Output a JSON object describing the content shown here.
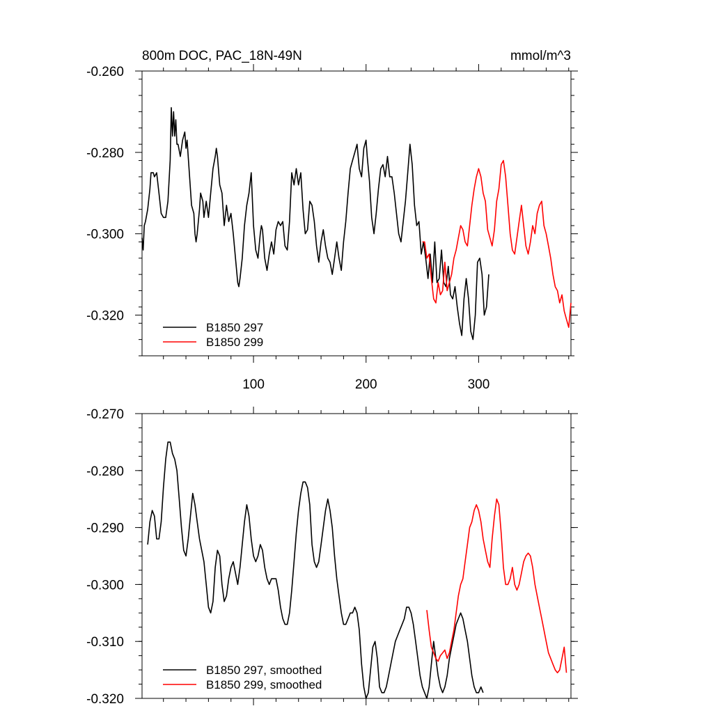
{
  "chart_data": [
    {
      "type": "line",
      "title": "800m DOC, PAC_18N-49N",
      "units": "mmol/m^3",
      "xlabel": "",
      "ylabel": "",
      "xlim": [
        1,
        382
      ],
      "ylim": [
        -0.33,
        -0.26
      ],
      "xticks": [
        100,
        200,
        300
      ],
      "xtick_labels": [
        "100",
        "200",
        "300"
      ],
      "yticks": [
        -0.32,
        -0.3,
        -0.28,
        -0.26
      ],
      "ytick_labels": [
        "-0.320",
        "-0.300",
        "-0.280",
        "-0.260"
      ],
      "grid": false,
      "legend_position": "bottom-left",
      "colors": {
        "B1850 297": "#000000",
        "B1850 299": "#ff0000"
      },
      "series": [
        {
          "name": "B1850 297",
          "color": "#000000",
          "x": [
            1,
            2,
            3,
            4,
            6,
            8,
            9,
            10,
            11,
            12,
            14,
            16,
            18,
            20,
            22,
            24,
            26,
            27,
            28,
            29,
            30,
            31,
            32,
            33,
            35,
            37,
            39,
            40,
            41,
            43,
            45,
            47,
            48,
            49,
            50,
            52,
            53,
            55,
            56,
            58,
            60,
            62,
            64,
            66,
            67,
            68,
            70,
            72,
            74,
            76,
            78,
            80,
            82,
            84,
            86,
            87,
            88,
            90,
            92,
            94,
            96,
            98,
            100,
            102,
            104,
            106,
            107,
            108,
            110,
            112,
            114,
            116,
            118,
            120,
            122,
            124,
            126,
            128,
            130,
            132,
            134,
            136,
            138,
            140,
            142,
            144,
            146,
            148,
            150,
            152,
            154,
            156,
            158,
            160,
            162,
            164,
            166,
            168,
            170,
            172,
            174,
            176,
            178,
            180,
            182,
            184,
            186,
            188,
            190,
            192,
            194,
            196,
            198,
            200,
            201,
            203,
            205,
            207,
            209,
            211,
            213,
            215,
            217,
            219,
            221,
            223,
            225,
            227,
            229,
            231,
            233,
            235,
            237,
            239,
            241,
            243,
            245,
            247,
            249,
            251,
            253,
            255,
            257,
            259,
            261,
            263,
            265,
            267,
            269,
            271,
            273,
            275,
            277,
            279,
            281,
            283,
            285,
            287,
            289,
            291,
            293,
            295,
            297,
            299,
            301,
            303,
            305,
            307,
            309
          ],
          "y": [
            -0.301,
            -0.304,
            -0.298,
            -0.297,
            -0.294,
            -0.289,
            -0.285,
            -0.285,
            -0.285,
            -0.286,
            -0.285,
            -0.29,
            -0.295,
            -0.296,
            -0.296,
            -0.292,
            -0.282,
            -0.269,
            -0.276,
            -0.27,
            -0.276,
            -0.272,
            -0.278,
            -0.278,
            -0.281,
            -0.277,
            -0.275,
            -0.279,
            -0.277,
            -0.285,
            -0.293,
            -0.295,
            -0.3,
            -0.302,
            -0.3,
            -0.294,
            -0.29,
            -0.292,
            -0.296,
            -0.292,
            -0.296,
            -0.29,
            -0.284,
            -0.281,
            -0.279,
            -0.281,
            -0.288,
            -0.29,
            -0.298,
            -0.293,
            -0.297,
            -0.295,
            -0.3,
            -0.306,
            -0.312,
            -0.313,
            -0.311,
            -0.306,
            -0.298,
            -0.293,
            -0.29,
            -0.285,
            -0.298,
            -0.304,
            -0.306,
            -0.3,
            -0.298,
            -0.299,
            -0.306,
            -0.309,
            -0.305,
            -0.302,
            -0.305,
            -0.299,
            -0.297,
            -0.298,
            -0.297,
            -0.303,
            -0.304,
            -0.297,
            -0.285,
            -0.288,
            -0.284,
            -0.288,
            -0.285,
            -0.294,
            -0.3,
            -0.299,
            -0.292,
            -0.293,
            -0.297,
            -0.303,
            -0.307,
            -0.302,
            -0.299,
            -0.303,
            -0.306,
            -0.307,
            -0.31,
            -0.306,
            -0.302,
            -0.306,
            -0.309,
            -0.302,
            -0.297,
            -0.29,
            -0.284,
            -0.282,
            -0.28,
            -0.278,
            -0.284,
            -0.286,
            -0.279,
            -0.277,
            -0.281,
            -0.287,
            -0.296,
            -0.3,
            -0.295,
            -0.289,
            -0.284,
            -0.283,
            -0.286,
            -0.281,
            -0.286,
            -0.286,
            -0.29,
            -0.295,
            -0.3,
            -0.302,
            -0.297,
            -0.292,
            -0.285,
            -0.278,
            -0.283,
            -0.293,
            -0.298,
            -0.297,
            -0.305,
            -0.302,
            -0.306,
            -0.311,
            -0.305,
            -0.312,
            -0.302,
            -0.312,
            -0.311,
            -0.304,
            -0.312,
            -0.313,
            -0.308,
            -0.315,
            -0.316,
            -0.313,
            -0.318,
            -0.322,
            -0.325,
            -0.316,
            -0.311,
            -0.316,
            -0.324,
            -0.326,
            -0.32,
            -0.307,
            -0.306,
            -0.31,
            -0.32,
            -0.318,
            -0.31
          ]
        },
        {
          "name": "B1850 299",
          "color": "#ff0000",
          "x": [
            250,
            252,
            254,
            256,
            258,
            260,
            262,
            264,
            266,
            268,
            270,
            272,
            274,
            276,
            278,
            280,
            282,
            284,
            286,
            288,
            290,
            292,
            294,
            296,
            298,
            300,
            302,
            304,
            306,
            308,
            310,
            312,
            314,
            316,
            318,
            320,
            322,
            324,
            326,
            328,
            330,
            332,
            334,
            336,
            338,
            340,
            342,
            344,
            346,
            348,
            350,
            352,
            354,
            356,
            358,
            360,
            362,
            364,
            366,
            368,
            370,
            372,
            374,
            376,
            378,
            380,
            382
          ],
          "y": [
            -0.302,
            -0.302,
            -0.306,
            -0.305,
            -0.311,
            -0.316,
            -0.317,
            -0.312,
            -0.315,
            -0.314,
            -0.307,
            -0.314,
            -0.312,
            -0.31,
            -0.306,
            -0.304,
            -0.301,
            -0.298,
            -0.299,
            -0.302,
            -0.303,
            -0.298,
            -0.293,
            -0.289,
            -0.286,
            -0.284,
            -0.286,
            -0.29,
            -0.292,
            -0.299,
            -0.301,
            -0.303,
            -0.299,
            -0.292,
            -0.289,
            -0.283,
            -0.282,
            -0.286,
            -0.293,
            -0.3,
            -0.304,
            -0.305,
            -0.301,
            -0.297,
            -0.293,
            -0.298,
            -0.303,
            -0.305,
            -0.302,
            -0.298,
            -0.3,
            -0.295,
            -0.293,
            -0.292,
            -0.298,
            -0.3,
            -0.303,
            -0.306,
            -0.31,
            -0.313,
            -0.314,
            -0.317,
            -0.315,
            -0.319,
            -0.321,
            -0.323,
            -0.317
          ]
        }
      ]
    },
    {
      "type": "line",
      "title": "",
      "xlabel": "",
      "ylabel": "",
      "xlim": [
        1,
        382
      ],
      "ylim": [
        -0.32,
        -0.27
      ],
      "xticks": [
        100,
        200,
        300
      ],
      "yticks": [
        -0.32,
        -0.31,
        -0.3,
        -0.29,
        -0.28,
        -0.27
      ],
      "ytick_labels": [
        "-0.320",
        "-0.310",
        "-0.300",
        "-0.290",
        "-0.280",
        "-0.270"
      ],
      "grid": false,
      "legend_position": "bottom-left",
      "colors": {
        "B1850 297, smoothed": "#000000",
        "B1850 299, smoothed": "#ff0000"
      },
      "series": [
        {
          "name": "B1850 297, smoothed",
          "color": "#000000",
          "x": [
            6,
            8,
            10,
            12,
            14,
            16,
            18,
            20,
            22,
            24,
            26,
            28,
            30,
            32,
            34,
            36,
            38,
            40,
            42,
            44,
            46,
            48,
            50,
            52,
            54,
            56,
            58,
            60,
            62,
            64,
            66,
            68,
            70,
            72,
            74,
            76,
            78,
            80,
            82,
            84,
            86,
            88,
            90,
            92,
            94,
            96,
            98,
            100,
            102,
            104,
            106,
            108,
            110,
            112,
            114,
            116,
            118,
            120,
            122,
            124,
            126,
            128,
            130,
            132,
            134,
            136,
            138,
            140,
            142,
            144,
            146,
            148,
            150,
            152,
            154,
            156,
            158,
            160,
            162,
            164,
            166,
            168,
            170,
            172,
            174,
            176,
            178,
            180,
            182,
            184,
            186,
            188,
            190,
            192,
            194,
            196,
            198,
            200,
            202,
            204,
            206,
            208,
            210,
            212,
            214,
            216,
            218,
            220,
            222,
            224,
            226,
            228,
            230,
            232,
            234,
            236,
            238,
            240,
            242,
            244,
            246,
            248,
            250,
            252,
            254,
            256,
            258,
            260,
            262,
            264,
            266,
            268,
            270,
            272,
            274,
            276,
            278,
            280,
            282,
            284,
            286,
            288,
            290,
            292,
            294,
            296,
            298,
            300,
            302,
            304
          ],
          "y": [
            -0.293,
            -0.289,
            -0.287,
            -0.288,
            -0.292,
            -0.292,
            -0.289,
            -0.283,
            -0.278,
            -0.275,
            -0.275,
            -0.277,
            -0.278,
            -0.28,
            -0.285,
            -0.29,
            -0.294,
            -0.295,
            -0.292,
            -0.288,
            -0.284,
            -0.286,
            -0.289,
            -0.292,
            -0.294,
            -0.296,
            -0.3,
            -0.304,
            -0.305,
            -0.303,
            -0.297,
            -0.294,
            -0.295,
            -0.3,
            -0.303,
            -0.302,
            -0.299,
            -0.297,
            -0.296,
            -0.298,
            -0.3,
            -0.297,
            -0.293,
            -0.289,
            -0.286,
            -0.288,
            -0.292,
            -0.295,
            -0.296,
            -0.295,
            -0.293,
            -0.294,
            -0.297,
            -0.299,
            -0.3,
            -0.299,
            -0.299,
            -0.299,
            -0.301,
            -0.304,
            -0.306,
            -0.307,
            -0.307,
            -0.305,
            -0.301,
            -0.296,
            -0.291,
            -0.287,
            -0.284,
            -0.282,
            -0.282,
            -0.283,
            -0.286,
            -0.293,
            -0.296,
            -0.297,
            -0.296,
            -0.293,
            -0.29,
            -0.287,
            -0.285,
            -0.287,
            -0.29,
            -0.295,
            -0.299,
            -0.302,
            -0.305,
            -0.307,
            -0.307,
            -0.306,
            -0.305,
            -0.305,
            -0.304,
            -0.305,
            -0.308,
            -0.314,
            -0.318,
            -0.32,
            -0.319,
            -0.315,
            -0.311,
            -0.31,
            -0.313,
            -0.318,
            -0.319,
            -0.319,
            -0.318,
            -0.316,
            -0.314,
            -0.312,
            -0.31,
            -0.309,
            -0.308,
            -0.307,
            -0.306,
            -0.304,
            -0.304,
            -0.305,
            -0.307,
            -0.31,
            -0.313,
            -0.316,
            -0.318,
            -0.319,
            -0.32,
            -0.318,
            -0.314,
            -0.31,
            -0.313,
            -0.316,
            -0.318,
            -0.319,
            -0.318,
            -0.316,
            -0.313,
            -0.311,
            -0.309,
            -0.307,
            -0.306,
            -0.305,
            -0.306,
            -0.308,
            -0.31,
            -0.313,
            -0.316,
            -0.318,
            -0.319,
            -0.319,
            -0.318,
            -0.319
          ],
          "y_note": "reading of the black smoothed curve"
        },
        {
          "name": "B1850 299, smoothed",
          "color": "#ff0000",
          "x": [
            254,
            256,
            258,
            260,
            262,
            264,
            266,
            268,
            270,
            272,
            274,
            276,
            278,
            280,
            282,
            284,
            286,
            288,
            290,
            292,
            294,
            296,
            298,
            300,
            302,
            304,
            306,
            308,
            310,
            312,
            314,
            316,
            318,
            320,
            322,
            324,
            326,
            328,
            330,
            332,
            334,
            336,
            338,
            340,
            342,
            344,
            346,
            348,
            350,
            352,
            354,
            356,
            358,
            360,
            362,
            364,
            366,
            368,
            370,
            372,
            374,
            376,
            378
          ],
          "y": [
            -0.3045,
            -0.308,
            -0.311,
            -0.312,
            -0.313,
            -0.3135,
            -0.3125,
            -0.312,
            -0.3115,
            -0.313,
            -0.312,
            -0.31,
            -0.308,
            -0.305,
            -0.302,
            -0.3,
            -0.299,
            -0.296,
            -0.293,
            -0.29,
            -0.289,
            -0.287,
            -0.286,
            -0.287,
            -0.289,
            -0.292,
            -0.294,
            -0.296,
            -0.297,
            -0.292,
            -0.288,
            -0.285,
            -0.286,
            -0.291,
            -0.297,
            -0.3,
            -0.3,
            -0.299,
            -0.297,
            -0.3,
            -0.301,
            -0.3,
            -0.298,
            -0.296,
            -0.295,
            -0.2945,
            -0.295,
            -0.297,
            -0.3,
            -0.302,
            -0.304,
            -0.306,
            -0.308,
            -0.31,
            -0.312,
            -0.313,
            -0.314,
            -0.315,
            -0.3155,
            -0.315,
            -0.313,
            -0.311,
            -0.3155
          ]
        }
      ]
    }
  ]
}
